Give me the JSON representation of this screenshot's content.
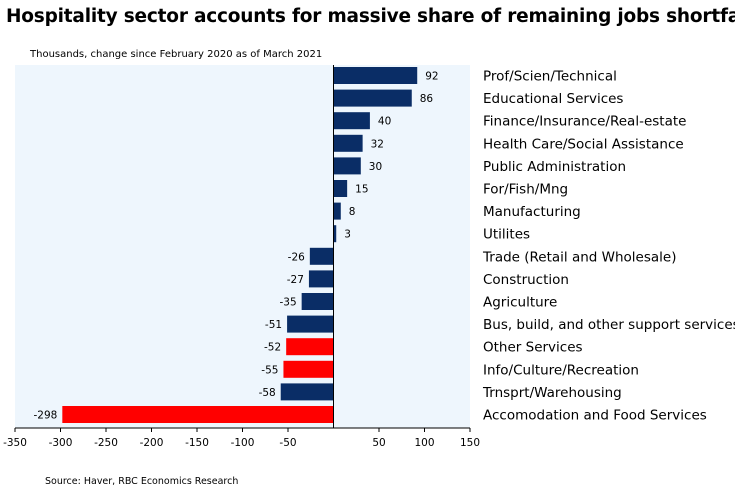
{
  "title": "Hospitality sector accounts for massive share of remaining jobs shortfall",
  "subtitle": "Thousands, change since February 2020 as of March 2021",
  "source": "Source: Haver, RBC Economics Research",
  "colors": {
    "navy": "#0a2d66",
    "red": "#ff0000",
    "plot_bg": "#eef6fd"
  },
  "chart_data": {
    "type": "bar",
    "orientation": "horizontal",
    "title": "Hospitality sector accounts for massive share of remaining jobs shortfall",
    "subtitle": "Thousands, change since February 2020 as of March 2021",
    "xlabel": "",
    "ylabel": "",
    "xlim": [
      -350,
      150
    ],
    "xticks": [
      -350,
      -300,
      -250,
      -200,
      -150,
      -100,
      -50,
      50,
      100,
      150
    ],
    "grid": false,
    "categories": [
      "Prof/Scien/Technical",
      "Educational Services",
      "Finance/Insurance/Real-estate",
      "Health Care/Social Assistance",
      "Public Administration",
      "For/Fish/Mng",
      "Manufacturing",
      "Utilites",
      "Trade (Retail and Wholesale)",
      "Construction",
      "Agriculture",
      "Bus, build, and other support services",
      "Other Services",
      "Info/Culture/Recreation",
      "Trnsprt/Warehousing",
      "Accomodation and Food Services"
    ],
    "values": [
      92,
      86,
      40,
      32,
      30,
      15,
      8,
      3,
      -26,
      -27,
      -35,
      -51,
      -52,
      -55,
      -58,
      -298
    ],
    "highlight": [
      false,
      false,
      false,
      false,
      false,
      false,
      false,
      false,
      false,
      false,
      false,
      false,
      true,
      true,
      false,
      true
    ]
  }
}
